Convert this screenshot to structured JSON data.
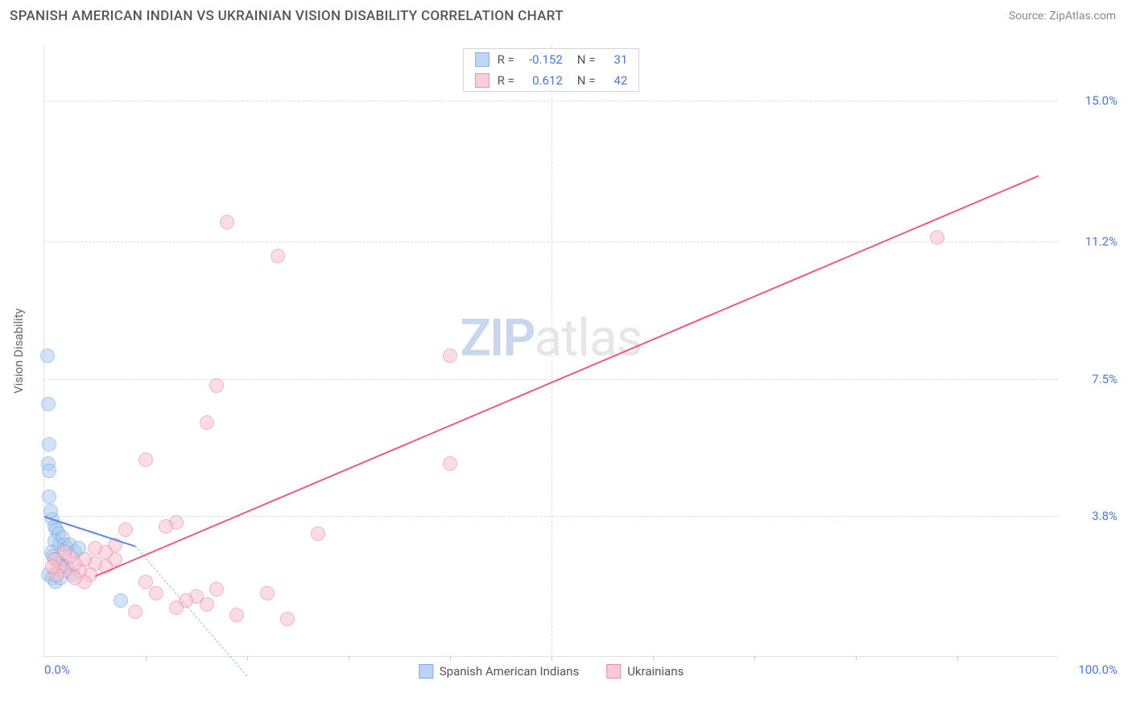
{
  "header": {
    "title": "SPANISH AMERICAN INDIAN VS UKRAINIAN VISION DISABILITY CORRELATION CHART",
    "source": "Source: ZipAtlas.com"
  },
  "watermark": {
    "left": "ZIP",
    "right": "atlas"
  },
  "chart": {
    "type": "scatter",
    "ylabel": "Vision Disability",
    "xlim": [
      0,
      100
    ],
    "ylim": [
      0,
      16.5
    ],
    "background_color": "#ffffff",
    "grid_color": "#dcdcdc",
    "axis_color": "#e2e2e2",
    "tick_color": "#4a78d0",
    "marker_radius": 9,
    "marker_stroke_width": 1.2,
    "yticks": [
      {
        "value": 3.8,
        "label": "3.8%"
      },
      {
        "value": 7.5,
        "label": "7.5%"
      },
      {
        "value": 11.2,
        "label": "11.2%"
      },
      {
        "value": 15.0,
        "label": "15.0%"
      }
    ],
    "xticks": {
      "minor_positions": [
        10,
        20,
        30,
        40,
        50,
        60,
        70,
        80,
        90
      ],
      "start_label": "0.0%",
      "end_label": "100.0%"
    },
    "series": [
      {
        "id": "spanish_american_indians",
        "name": "Spanish American Indians",
        "fill_color": "#aeccf2",
        "stroke_color": "#6a9ee0",
        "fill_opacity": 0.55,
        "R": "-0.152",
        "N": "31",
        "regression": {
          "x1": 0,
          "y1": 3.8,
          "x2": 9,
          "y2": 3.0,
          "line_color": "#5a8bd8",
          "line_width": 2,
          "style": "solid",
          "ext_x1": 9,
          "ext_y1": 3.0,
          "ext_x2": 20,
          "ext_y2": -0.5,
          "ext_color": "#9bb9e6"
        },
        "points": [
          {
            "x": 0.3,
            "y": 8.1
          },
          {
            "x": 0.4,
            "y": 6.8
          },
          {
            "x": 0.5,
            "y": 5.7
          },
          {
            "x": 0.4,
            "y": 5.2
          },
          {
            "x": 0.5,
            "y": 5.0
          },
          {
            "x": 0.8,
            "y": 3.7
          },
          {
            "x": 1.0,
            "y": 3.5
          },
          {
            "x": 1.2,
            "y": 3.4
          },
          {
            "x": 1.4,
            "y": 3.3
          },
          {
            "x": 1.0,
            "y": 3.1
          },
          {
            "x": 1.5,
            "y": 3.0
          },
          {
            "x": 1.8,
            "y": 3.2
          },
          {
            "x": 2.0,
            "y": 3.0
          },
          {
            "x": 2.2,
            "y": 2.9
          },
          {
            "x": 0.7,
            "y": 2.8
          },
          {
            "x": 0.9,
            "y": 2.7
          },
          {
            "x": 1.2,
            "y": 2.6
          },
          {
            "x": 1.5,
            "y": 2.5
          },
          {
            "x": 1.8,
            "y": 2.4
          },
          {
            "x": 2.2,
            "y": 2.4
          },
          {
            "x": 2.5,
            "y": 3.0
          },
          {
            "x": 3.0,
            "y": 2.8
          },
          {
            "x": 3.4,
            "y": 2.9
          },
          {
            "x": 0.4,
            "y": 2.2
          },
          {
            "x": 0.8,
            "y": 2.1
          },
          {
            "x": 1.1,
            "y": 2.0
          },
          {
            "x": 1.6,
            "y": 2.1
          },
          {
            "x": 7.5,
            "y": 1.5
          },
          {
            "x": 2.8,
            "y": 2.2
          },
          {
            "x": 0.6,
            "y": 3.9
          },
          {
            "x": 0.5,
            "y": 4.3
          }
        ]
      },
      {
        "id": "ukrainians",
        "name": "Ukrainians",
        "fill_color": "#f6c2cf",
        "stroke_color": "#e87a9a",
        "fill_opacity": 0.55,
        "R": "0.612",
        "N": "42",
        "regression": {
          "x1": 5,
          "y1": 2.2,
          "x2": 98,
          "y2": 13.0,
          "line_color": "#ea5a87",
          "line_width": 2,
          "style": "solid"
        },
        "points": [
          {
            "x": 88,
            "y": 11.3
          },
          {
            "x": 40,
            "y": 8.1
          },
          {
            "x": 18,
            "y": 11.7
          },
          {
            "x": 23,
            "y": 10.8
          },
          {
            "x": 40,
            "y": 5.2
          },
          {
            "x": 17,
            "y": 7.3
          },
          {
            "x": 16,
            "y": 6.3
          },
          {
            "x": 10,
            "y": 5.3
          },
          {
            "x": 27,
            "y": 3.3
          },
          {
            "x": 22,
            "y": 1.7
          },
          {
            "x": 24,
            "y": 1.0
          },
          {
            "x": 19,
            "y": 1.1
          },
          {
            "x": 17,
            "y": 1.8
          },
          {
            "x": 15,
            "y": 1.6
          },
          {
            "x": 14,
            "y": 1.5
          },
          {
            "x": 13,
            "y": 3.6
          },
          {
            "x": 12,
            "y": 3.5
          },
          {
            "x": 11,
            "y": 1.7
          },
          {
            "x": 9,
            "y": 1.2
          },
          {
            "x": 8,
            "y": 3.4
          },
          {
            "x": 7,
            "y": 3.0
          },
          {
            "x": 7,
            "y": 2.6
          },
          {
            "x": 6,
            "y": 2.8
          },
          {
            "x": 6,
            "y": 2.4
          },
          {
            "x": 5,
            "y": 2.9
          },
          {
            "x": 5,
            "y": 2.5
          },
          {
            "x": 4.5,
            "y": 2.2
          },
          {
            "x": 4,
            "y": 2.6
          },
          {
            "x": 4,
            "y": 2.0
          },
          {
            "x": 3.5,
            "y": 2.3
          },
          {
            "x": 3,
            "y": 2.1
          },
          {
            "x": 3,
            "y": 2.5
          },
          {
            "x": 2.5,
            "y": 2.7
          },
          {
            "x": 2,
            "y": 2.3
          },
          {
            "x": 2,
            "y": 2.8
          },
          {
            "x": 1.5,
            "y": 2.4
          },
          {
            "x": 1.2,
            "y": 2.2
          },
          {
            "x": 1.0,
            "y": 2.6
          },
          {
            "x": 0.8,
            "y": 2.4
          },
          {
            "x": 10,
            "y": 2.0
          },
          {
            "x": 13,
            "y": 1.3
          },
          {
            "x": 16,
            "y": 1.4
          }
        ]
      }
    ]
  },
  "legend": {
    "r_label": "R =",
    "n_label": "N ="
  }
}
